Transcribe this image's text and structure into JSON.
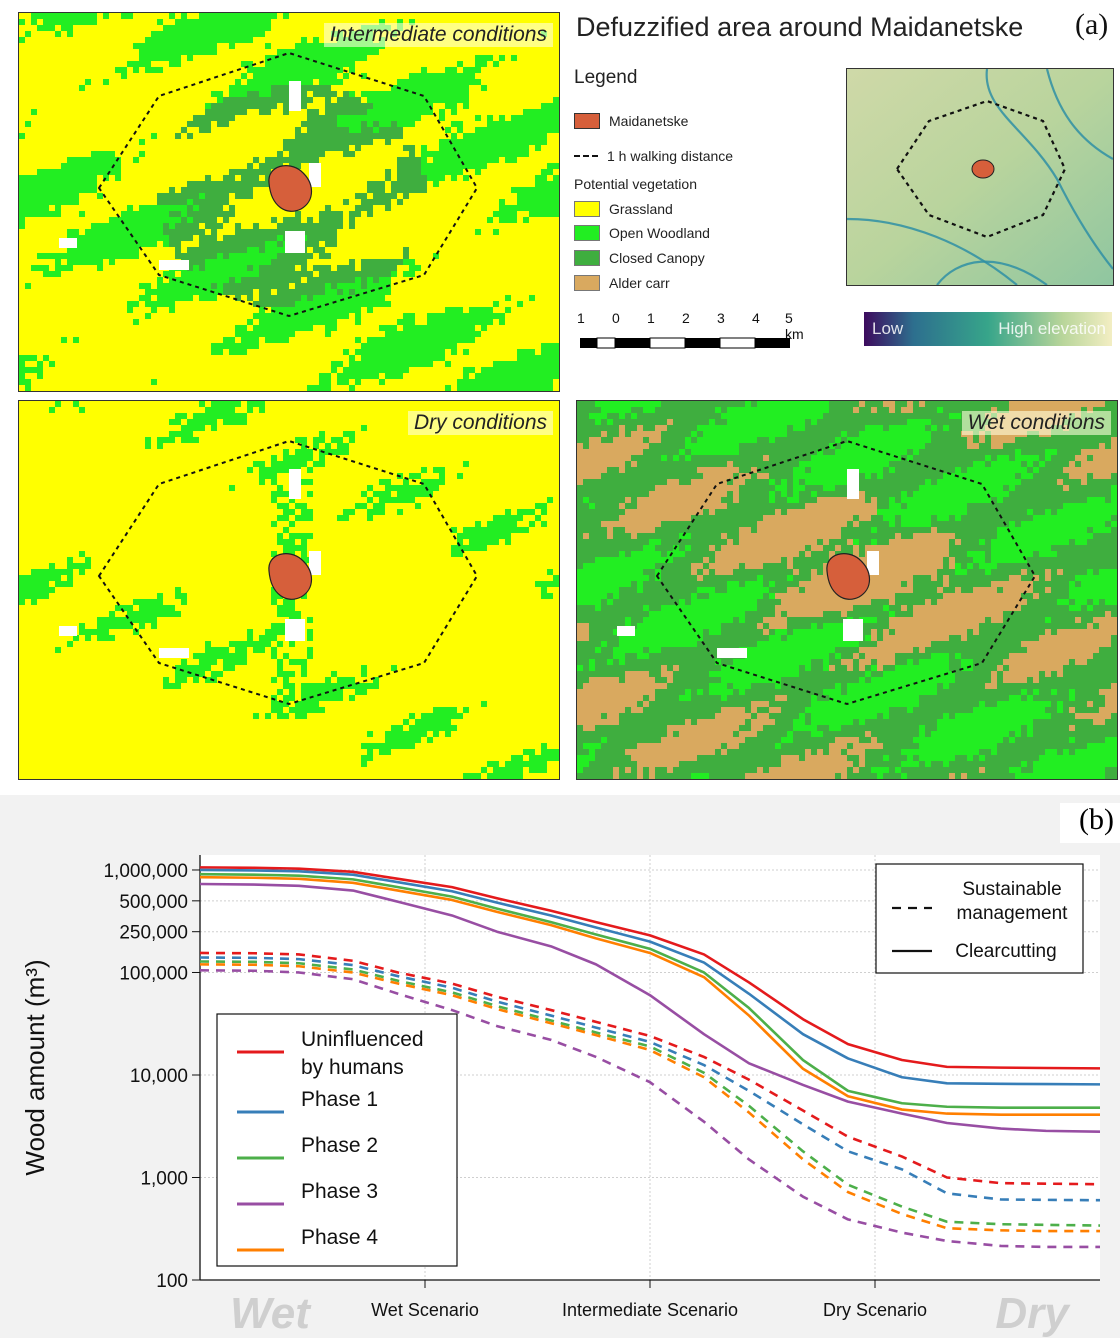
{
  "figure": {
    "title": "Defuzzified area around Maidanetske",
    "tag_a": "(a)",
    "tag_b": "(b)"
  },
  "maps": {
    "intermediate": "Intermediate conditions",
    "dry": "Dry conditions",
    "wet": "Wet conditions"
  },
  "legend": {
    "title": "Legend",
    "site": "Maidanetske",
    "walk": "1 h walking distance",
    "group": "Potential vegetation",
    "classes": [
      {
        "label": "Grassland",
        "color": "#ffff00"
      },
      {
        "label": "Open Woodland",
        "color": "#22ee22"
      },
      {
        "label": "Closed Canopy",
        "color": "#3fae3f"
      },
      {
        "label": "Alder carr",
        "color": "#d9a95f"
      }
    ],
    "site_color": "#d65f3b"
  },
  "scale": {
    "ticks": [
      "1",
      "0",
      "1",
      "2",
      "3",
      "4",
      "5 km"
    ]
  },
  "elevation": {
    "low": "Low",
    "high": "High elevation"
  },
  "chart_data": {
    "type": "line",
    "ylabel": "Wood amount (m³)",
    "yscale": "log",
    "ylim": [
      100,
      1400000
    ],
    "yticks": [
      "100",
      "1,000",
      "10,000",
      "100,000",
      "250,000",
      "500,000",
      "1,000,000"
    ],
    "ytick_values": [
      100,
      1000,
      10000,
      100000,
      250000,
      500000,
      1000000
    ],
    "xticks": [
      "Wet Scenario",
      "Intermediate Scenario",
      "Dry Scenario"
    ],
    "xtick_positions": [
      0.25,
      0.5,
      0.75
    ],
    "xlim": [
      0,
      1
    ],
    "x_ends": [
      "Wet",
      "Dry"
    ],
    "grid": true,
    "style_legend": [
      {
        "label": "Sustainable\nmanagement",
        "style": "dashed"
      },
      {
        "label": "Clearcutting",
        "style": "solid"
      }
    ],
    "x": [
      0,
      0.06,
      0.11,
      0.17,
      0.22,
      0.28,
      0.33,
      0.39,
      0.44,
      0.5,
      0.56,
      0.61,
      0.67,
      0.72,
      0.78,
      0.83,
      0.89,
      0.94,
      1.0
    ],
    "series": [
      {
        "name": "Uninfluenced by humans",
        "color": "#e41a1c",
        "style": "solid",
        "values": [
          1060000,
          1050000,
          1030000,
          960000,
          820000,
          680000,
          530000,
          400000,
          310000,
          230000,
          150000,
          80000,
          35000,
          20000,
          14000,
          12000,
          11800,
          11700,
          11600
        ]
      },
      {
        "name": "Phase 1",
        "color": "#377eb8",
        "style": "solid",
        "values": [
          1000000,
          990000,
          970000,
          900000,
          760000,
          620000,
          480000,
          360000,
          275000,
          200000,
          125000,
          62000,
          25000,
          14500,
          9500,
          8300,
          8200,
          8150,
          8100
        ]
      },
      {
        "name": "Phase 2",
        "color": "#4daf4a",
        "style": "solid",
        "values": [
          910000,
          900000,
          880000,
          810000,
          680000,
          550000,
          420000,
          310000,
          235000,
          170000,
          100000,
          45000,
          14000,
          7000,
          5300,
          4900,
          4800,
          4800,
          4800
        ]
      },
      {
        "name": "Phase 3",
        "color": "#984ea3",
        "style": "solid",
        "values": [
          730000,
          720000,
          700000,
          630000,
          490000,
          360000,
          250000,
          180000,
          120000,
          60000,
          25000,
          13000,
          8000,
          5500,
          4200,
          3400,
          3000,
          2850,
          2800
        ]
      },
      {
        "name": "Phase 4",
        "color": "#ff7f00",
        "style": "solid",
        "values": [
          850000,
          840000,
          820000,
          750000,
          630000,
          510000,
          390000,
          290000,
          215000,
          155000,
          90000,
          38000,
          11500,
          6200,
          4600,
          4200,
          4100,
          4100,
          4100
        ]
      },
      {
        "name": "Uninfluenced by humans",
        "color": "#e41a1c",
        "style": "dashed",
        "values": [
          155000,
          154000,
          150000,
          130000,
          100000,
          78000,
          58000,
          43000,
          33000,
          24000,
          15000,
          9000,
          4500,
          2500,
          1600,
          1000,
          880,
          870,
          860
        ]
      },
      {
        "name": "Phase 1",
        "color": "#377eb8",
        "style": "dashed",
        "values": [
          140000,
          139000,
          135000,
          118000,
          92000,
          71000,
          52000,
          38000,
          29000,
          21000,
          12500,
          7000,
          3300,
          1800,
          1200,
          700,
          610,
          605,
          600
        ]
      },
      {
        "name": "Phase 2",
        "color": "#4daf4a",
        "style": "dashed",
        "values": [
          128000,
          127000,
          123000,
          107000,
          83000,
          64000,
          47000,
          34000,
          26000,
          19000,
          10500,
          5000,
          1800,
          850,
          520,
          370,
          350,
          345,
          340
        ]
      },
      {
        "name": "Phase 3",
        "color": "#984ea3",
        "style": "dashed",
        "values": [
          105000,
          104000,
          100000,
          86000,
          62000,
          43000,
          30000,
          22000,
          15000,
          8500,
          3500,
          1500,
          650,
          390,
          290,
          240,
          215,
          210,
          210
        ]
      },
      {
        "name": "Phase 4",
        "color": "#ff7f00",
        "style": "dashed",
        "values": [
          120000,
          119000,
          115000,
          100000,
          78000,
          60000,
          44000,
          32000,
          24500,
          17500,
          9500,
          4300,
          1500,
          720,
          440,
          320,
          305,
          300,
          300
        ]
      }
    ],
    "legend": [
      {
        "label": "Uninfluenced\nby humans",
        "color": "#e41a1c"
      },
      {
        "label": "Phase 1",
        "color": "#377eb8"
      },
      {
        "label": "Phase 2",
        "color": "#4daf4a"
      },
      {
        "label": "Phase 3",
        "color": "#984ea3"
      },
      {
        "label": "Phase 4",
        "color": "#ff7f00"
      }
    ]
  }
}
